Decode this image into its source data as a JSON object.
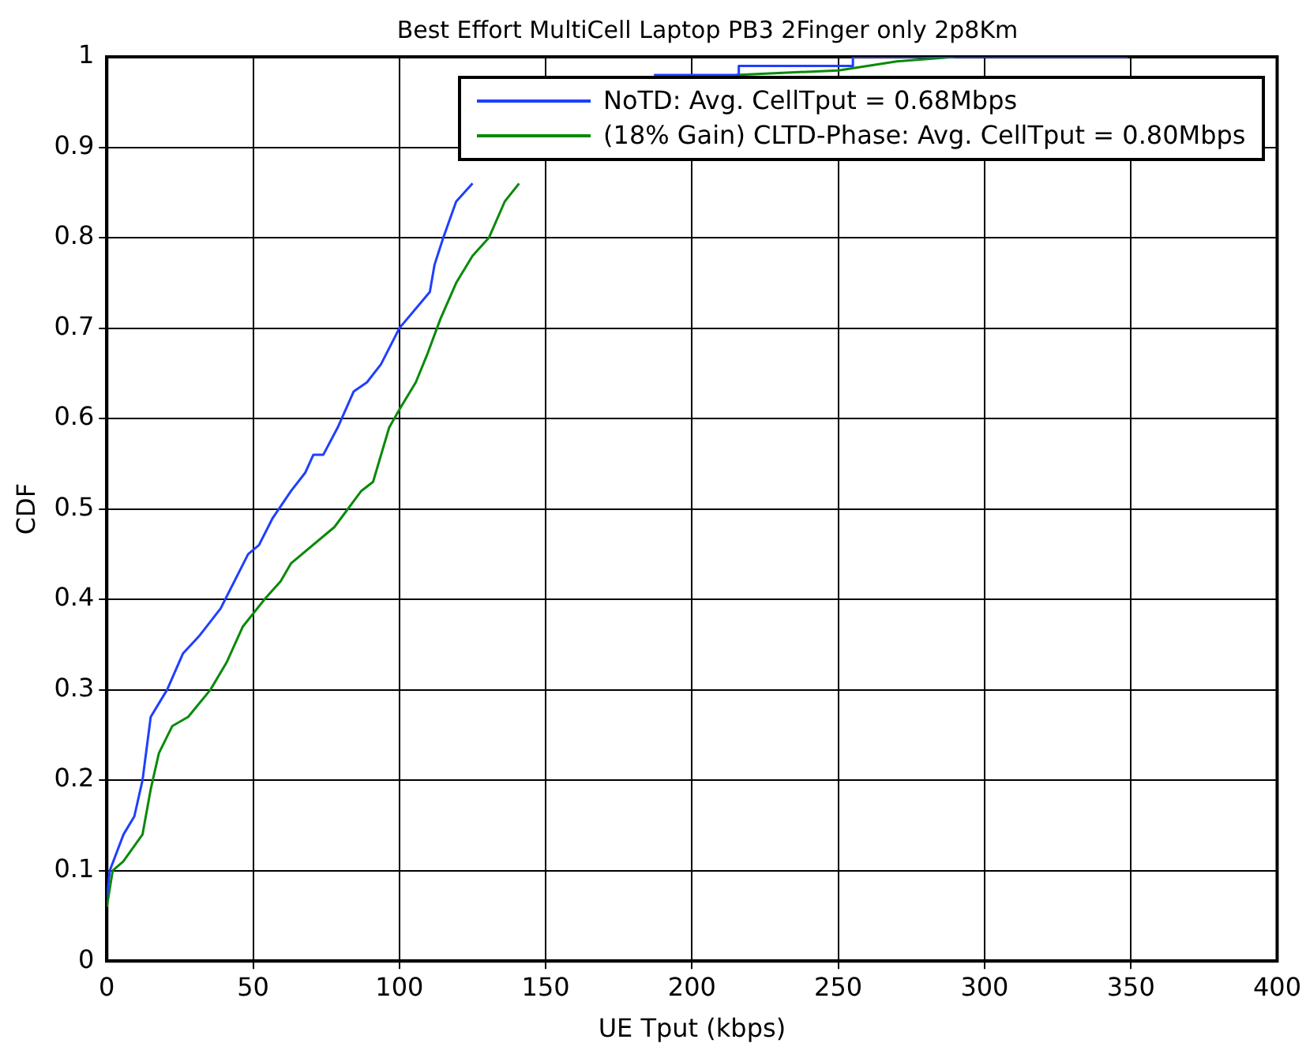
{
  "chart_data": {
    "type": "line",
    "title": "Best Effort MultiCell Laptop PB3 2Finger only 2p8Km",
    "xlabel": "UE Tput (kbps)",
    "ylabel": "CDF",
    "xlim": [
      0,
      400
    ],
    "xticks": [
      0,
      50,
      100,
      150,
      200,
      250,
      300,
      350,
      400
    ],
    "ylim": [
      0,
      1
    ],
    "yticks": [
      0,
      0.1,
      0.2,
      0.3,
      0.4,
      0.5,
      0.6,
      0.7,
      0.8,
      0.9,
      1
    ],
    "grid": true,
    "legend": "top right",
    "marker": "none",
    "line_style": "solid",
    "series": [
      {
        "name": "NoTD: Avg. CellTput = 0.68Mbps",
        "color": "#1f3fff",
        "x": [
          0,
          1,
          5.7,
          9.4,
          12.2,
          15,
          20.6,
          26,
          31.7,
          38.9,
          48.3,
          52,
          56.7,
          63,
          67.8,
          70.6,
          74,
          78.9,
          84.4,
          88.9,
          93.7,
          100,
          110.4,
          112,
          115,
          119.4,
          125,
          150,
          187,
          216,
          216,
          255,
          255,
          349
        ],
        "values": [
          0.07,
          0.1,
          0.14,
          0.16,
          0.2,
          0.27,
          0.3,
          0.34,
          0.36,
          0.39,
          0.45,
          0.46,
          0.49,
          0.52,
          0.54,
          0.56,
          0.56,
          0.59,
          0.63,
          0.64,
          0.66,
          0.7,
          0.74,
          0.77,
          0.8,
          0.84,
          0.86,
          null,
          0.98,
          0.98,
          0.99,
          0.99,
          1,
          1
        ]
      },
      {
        "name": "(18% Gain) CLTD-Phase: Avg. CellTput = 0.80Mbps",
        "color": "#0a8a0a",
        "x": [
          0,
          2,
          5.6,
          12.2,
          15,
          17.8,
          22.4,
          27.8,
          35.4,
          40.9,
          46.5,
          53.9,
          59.4,
          63,
          77.8,
          87,
          91,
          96.5,
          100,
          105.6,
          109.4,
          114,
          119.4,
          125,
          130.6,
          136,
          140.9,
          170,
          215,
          250,
          270,
          290
        ],
        "values": [
          0.06,
          0.1,
          0.11,
          0.14,
          0.19,
          0.23,
          0.26,
          0.27,
          0.3,
          0.33,
          0.37,
          0.4,
          0.42,
          0.44,
          0.48,
          0.52,
          0.53,
          0.59,
          0.61,
          0.64,
          0.67,
          0.71,
          0.75,
          0.78,
          0.8,
          0.84,
          0.86,
          null,
          0.98,
          0.985,
          0.995,
          1
        ]
      }
    ]
  }
}
